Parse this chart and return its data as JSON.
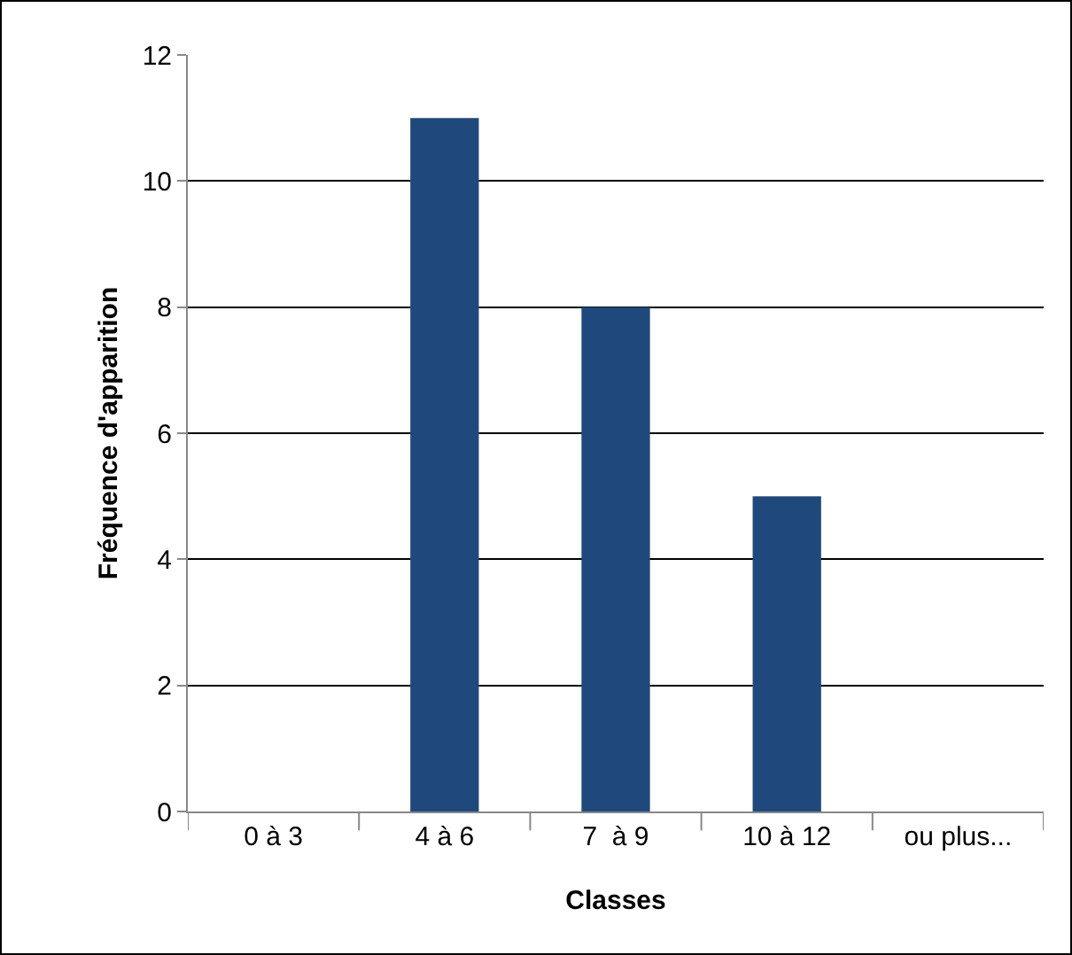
{
  "chart_data": {
    "type": "bar",
    "xlabel": "Classes",
    "ylabel": "Fréquence d'apparition",
    "categories": [
      "0 à 3",
      "4 à 6",
      "7  à 9",
      "10 à 12",
      "ou plus..."
    ],
    "values": [
      0,
      11,
      8,
      5,
      0
    ],
    "color": "#1f497d",
    "ylim": [
      0,
      12
    ],
    "yticks": [
      0,
      2,
      4,
      6,
      8,
      10,
      12
    ],
    "grid": "y",
    "legend": false
  }
}
